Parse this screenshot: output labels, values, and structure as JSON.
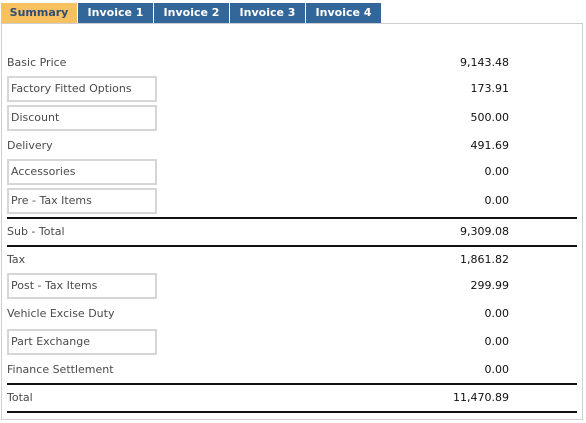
{
  "tabs": [
    {
      "label": "Summary",
      "active": true
    },
    {
      "label": "Invoice 1",
      "active": false
    },
    {
      "label": "Invoice 2",
      "active": false
    },
    {
      "label": "Invoice 3",
      "active": false
    },
    {
      "label": "Invoice 4",
      "active": false
    }
  ],
  "rows": [
    {
      "label": "Basic Price",
      "value": "9,143.48"
    },
    {
      "label": "Factory Fitted Options",
      "value": "173.91"
    },
    {
      "label": "Discount",
      "value": "500.00"
    },
    {
      "label": "Delivery",
      "value": "491.69"
    },
    {
      "label": "Accessories",
      "value": "0.00"
    },
    {
      "label": "Pre - Tax Items",
      "value": "0.00"
    },
    {
      "label": "Sub - Total",
      "value": "9,309.08"
    },
    {
      "label": "Tax",
      "value": "1,861.82"
    },
    {
      "label": "Post - Tax Items",
      "value": "299.99"
    },
    {
      "label": "Vehicle Excise Duty",
      "value": "0.00"
    },
    {
      "label": "Part Exchange",
      "value": "0.00"
    },
    {
      "label": "Finance Settlement",
      "value": "0.00"
    },
    {
      "label": "Total",
      "value": "11,470.89"
    }
  ],
  "colors": {
    "tab_active_bg": "#f7c15f",
    "tab_bg": "#336699",
    "divider": "#111111"
  }
}
